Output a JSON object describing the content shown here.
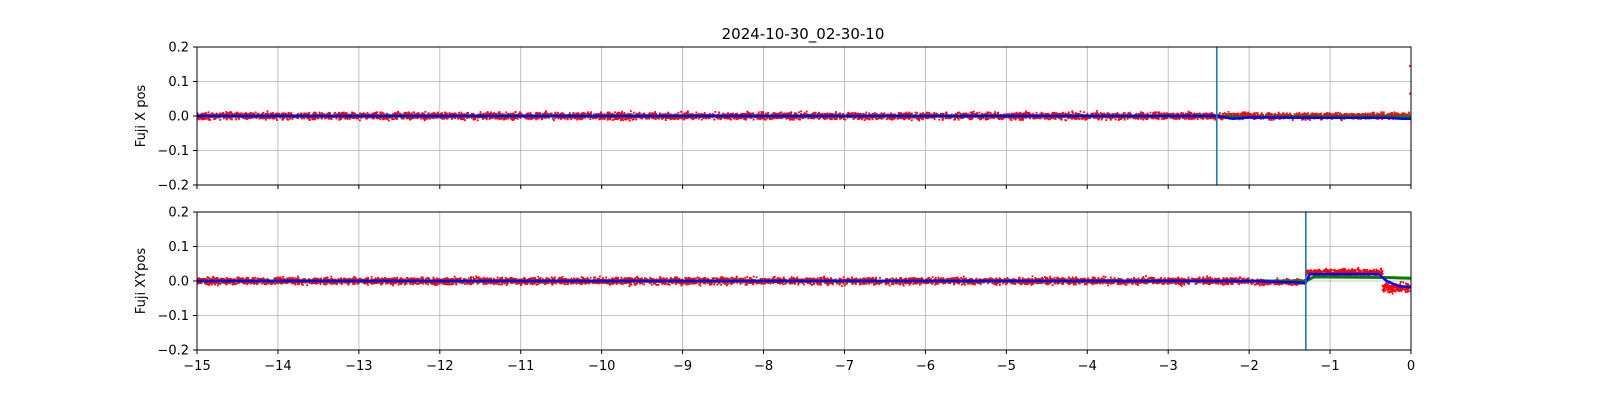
{
  "figure": {
    "title": "2024-10-30_02-30-10"
  },
  "chart_data": [
    {
      "type": "scatter",
      "ylabel": "Fuji X pos",
      "xlim": [
        -15,
        0
      ],
      "ylim": [
        -0.2,
        0.2
      ],
      "x_ticks": [
        -15,
        -14,
        -13,
        -12,
        -11,
        -10,
        -9,
        -8,
        -7,
        -6,
        -5,
        -4,
        -3,
        -2,
        -1,
        0
      ],
      "x_tick_labels": [],
      "y_ticks": [
        -0.2,
        -0.1,
        0.0,
        0.1,
        0.2
      ],
      "y_tick_labels": [
        "−0.2",
        "−0.1",
        "0.0",
        "0.1",
        "0.2"
      ],
      "grid": true,
      "vline_x": -2.4,
      "series": [
        {
          "role": "scatter-raw",
          "color": "#ff0000",
          "segments": [
            {
              "x": [
                -15,
                -0.02
              ],
              "center": 0.0,
              "spread": 0.015
            }
          ],
          "spikes": [
            {
              "x": -0.01,
              "y": 0.145
            },
            {
              "x": -0.01,
              "y": 0.065
            }
          ]
        },
        {
          "role": "line-green",
          "color": "#008000",
          "x": [
            -15,
            -2.4,
            -2.2,
            -0.3,
            0
          ],
          "y": [
            0.0,
            0.0,
            -0.003,
            -0.002,
            -0.002
          ]
        },
        {
          "role": "line-blue",
          "color": "#0000ff",
          "x": [
            -15,
            -2.4,
            -2.2,
            -2.0,
            -1.2,
            -0.3,
            -0.1,
            0
          ],
          "y": [
            0.0,
            0.0,
            -0.008,
            -0.004,
            -0.005,
            -0.005,
            -0.008,
            -0.008
          ]
        }
      ]
    },
    {
      "type": "scatter",
      "ylabel": "Fuji XYpos",
      "xlim": [
        -15,
        0
      ],
      "ylim": [
        -0.2,
        0.2
      ],
      "x_ticks": [
        -15,
        -14,
        -13,
        -12,
        -11,
        -10,
        -9,
        -8,
        -7,
        -6,
        -5,
        -4,
        -3,
        -2,
        -1,
        0
      ],
      "x_tick_labels": [
        "−15",
        "−14",
        "−13",
        "−12",
        "−11",
        "−10",
        "−9",
        "−8",
        "−7",
        "−6",
        "−5",
        "−4",
        "−3",
        "−2",
        "−1",
        "0"
      ],
      "y_ticks": [
        -0.2,
        -0.1,
        0.0,
        0.1,
        0.2
      ],
      "y_tick_labels": [
        "−0.2",
        "−0.1",
        "0.0",
        "0.1",
        "0.2"
      ],
      "grid": true,
      "vline_x": -1.3,
      "series": [
        {
          "role": "scatter-raw",
          "color": "#ff0000",
          "segments": [
            {
              "x": [
                -15,
                -2.0
              ],
              "center": 0.0,
              "spread": 0.015
            },
            {
              "x": [
                -2.0,
                -1.3
              ],
              "center": -0.003,
              "spread": 0.012
            },
            {
              "x": [
                -1.3,
                -0.35
              ],
              "center": 0.025,
              "spread": 0.015
            },
            {
              "x": [
                -0.35,
                0
              ],
              "center": -0.02,
              "spread": 0.02
            }
          ]
        },
        {
          "role": "line-green",
          "color": "#008000",
          "x": [
            -15,
            -1.3,
            -1.2,
            -0.3,
            0
          ],
          "y": [
            0.0,
            0.0,
            0.012,
            0.01,
            0.008
          ]
        },
        {
          "role": "line-blue",
          "color": "#0000ff",
          "x": [
            -15,
            -2.0,
            -1.3,
            -1.25,
            -0.4,
            -0.3,
            -0.15,
            0
          ],
          "y": [
            0.0,
            0.0,
            -0.005,
            0.02,
            0.02,
            0.0,
            -0.015,
            -0.018
          ]
        }
      ]
    }
  ]
}
